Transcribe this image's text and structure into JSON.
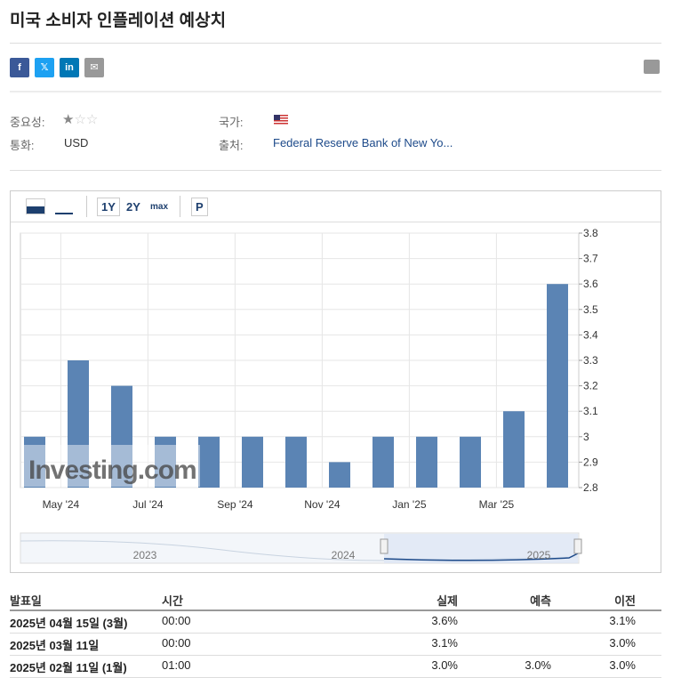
{
  "header": {
    "title": "미국 소비자 인플레이션 예상치"
  },
  "info": {
    "importance_label": "중요성:",
    "country_label": "국가:",
    "currency_label": "통화:",
    "currency": "USD",
    "source_label": "출처:",
    "source": "Federal Reserve Bank of New Yo..."
  },
  "toolbar": {
    "ranges": [
      "1Y",
      "2Y",
      "max"
    ],
    "popup": "P"
  },
  "chart_data": {
    "type": "bar",
    "categories": [
      null,
      "May '24",
      null,
      "Jul '24",
      null,
      "Sep '24",
      null,
      "Nov '24",
      null,
      "Jan '25",
      null,
      "Mar '25",
      null
    ],
    "values": [
      3.0,
      3.3,
      3.2,
      3.0,
      3.0,
      3.0,
      3.0,
      2.9,
      3.0,
      3.0,
      3.0,
      3.1,
      3.6
    ],
    "color": "#5b84b4",
    "ylim": [
      2.8,
      3.8
    ],
    "yticks": [
      2.8,
      2.9,
      3,
      3.1,
      3.2,
      3.3,
      3.4,
      3.5,
      3.6,
      3.7,
      3.8
    ],
    "grid": true,
    "watermark": "Investing.com",
    "navigator_labels": [
      "2023",
      "2024",
      "2025"
    ]
  },
  "table": {
    "header": [
      "발표일",
      "시간",
      "실제",
      "예측",
      "이전"
    ],
    "rows": [
      [
        "2025년 04월 15일 (3월)",
        "00:00",
        "3.6%",
        null,
        "3.1%"
      ],
      [
        "2025년 03월 11일",
        "00:00",
        "3.1%",
        null,
        "3.0%"
      ],
      [
        "2025년 02월 11일 (1월)",
        "01:00",
        "3.0%",
        "3.0%",
        "3.0%"
      ]
    ]
  }
}
